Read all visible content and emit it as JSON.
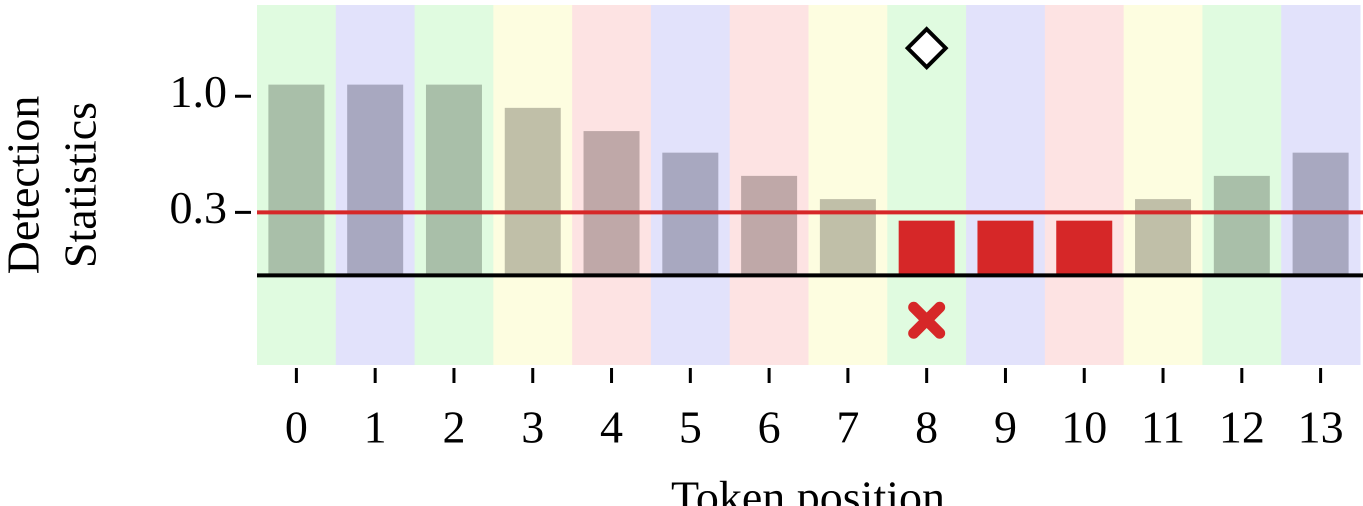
{
  "chart_data": {
    "type": "bar",
    "ylabel": [
      "Detection",
      "Statistics"
    ],
    "xlabel": "Token position",
    "categories": [
      "0",
      "1",
      "2",
      "3",
      "4",
      "5",
      "6",
      "7",
      "8",
      "9",
      "10",
      "11",
      "12",
      "13"
    ],
    "values": [
      1.07,
      1.07,
      1.07,
      0.93,
      0.79,
      0.66,
      0.52,
      0.38,
      0.25,
      0.25,
      0.25,
      0.38,
      0.52,
      0.66
    ],
    "colors": [
      "#a9bfa9",
      "#a8a8c0",
      "#a9bfa9",
      "#c0bfa8",
      "#bfa8a8",
      "#a8a8c0",
      "#bfa8a8",
      "#c0bfa8",
      "#d62728",
      "#d62728",
      "#d62728",
      "#c0bfa8",
      "#a9bfa9",
      "#a8a8c0"
    ],
    "band_colors": [
      "#e0fbe0",
      "#e2e2fb",
      "#e0fbe0",
      "#fdfde0",
      "#fde3e3",
      "#e2e2fb",
      "#fde3e3",
      "#fdfde0",
      "#e0fbe0",
      "#e2e2fb",
      "#fde3e3",
      "#fdfde0",
      "#e0fbe0",
      "#e2e2fb"
    ],
    "baseline": -0.08,
    "threshold": {
      "value": 0.3,
      "color": "#d62728"
    },
    "markers": [
      {
        "x": 8,
        "y": 1.29,
        "shape": "diamond",
        "color": "#000000"
      },
      {
        "x": 8,
        "y": -0.35,
        "shape": "x",
        "color": "#d62728"
      }
    ],
    "ylim": [
      -0.62,
      1.55
    ],
    "yticks": [
      {
        "value": 1,
        "label": "1.0"
      },
      0.3
    ]
  }
}
